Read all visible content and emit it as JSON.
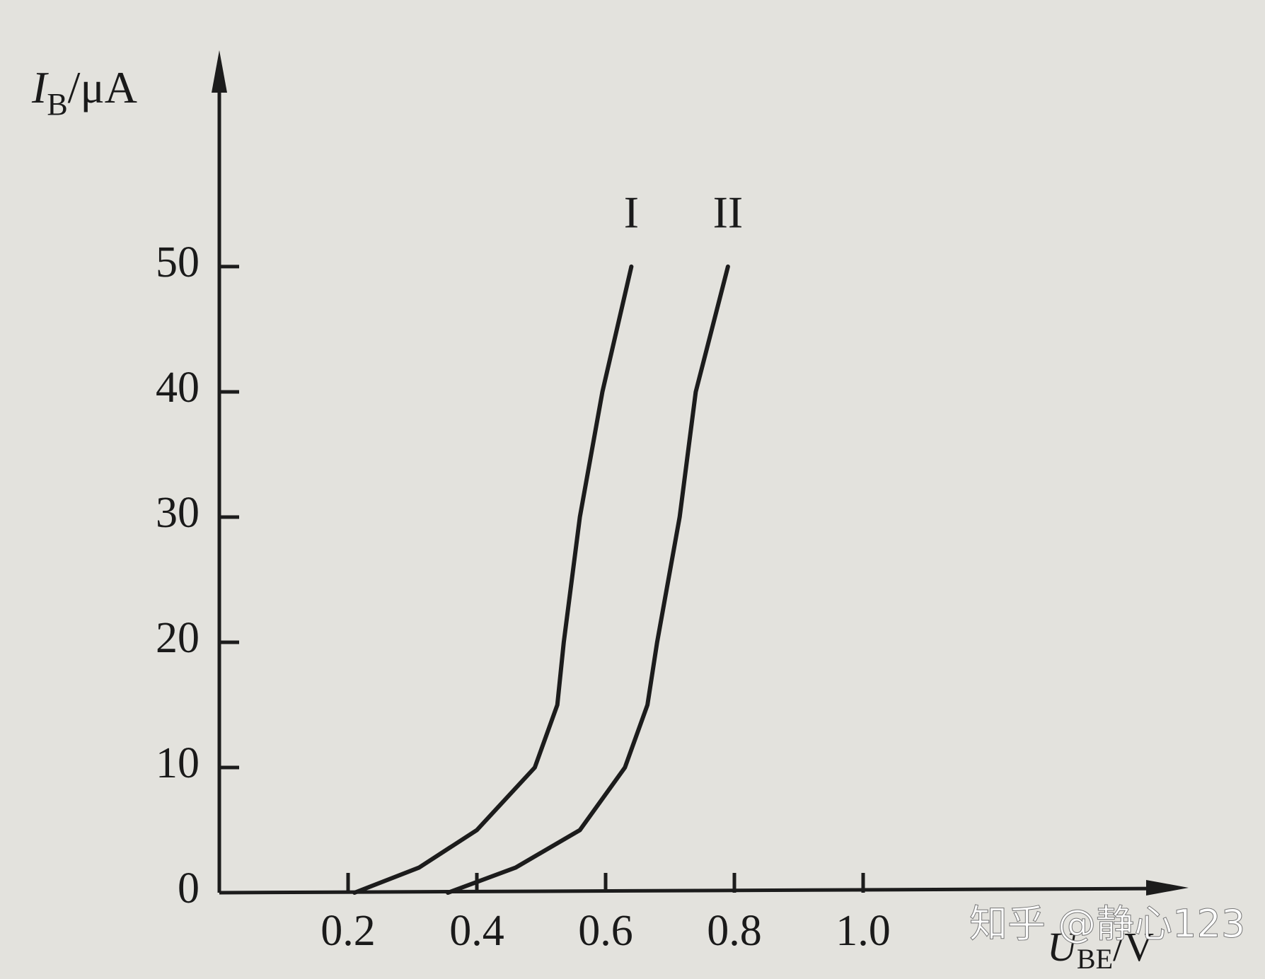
{
  "chart_data": {
    "type": "line",
    "ylabel": {
      "symbol": "I",
      "subscript": "B",
      "unit": "/μA"
    },
    "xlabel": {
      "symbol": "U",
      "subscript": "BE",
      "unit": "/V"
    },
    "series": [
      {
        "name": "I",
        "color": "#1c1c1c",
        "x": [
          0.21,
          0.31,
          0.4,
          0.49,
          0.525,
          0.535,
          0.56,
          0.595,
          0.64
        ],
        "values": [
          0,
          2,
          5,
          10,
          15,
          20,
          30,
          40,
          50
        ]
      },
      {
        "name": "II",
        "color": "#1c1c1c",
        "x": [
          0.355,
          0.46,
          0.56,
          0.63,
          0.665,
          0.68,
          0.715,
          0.74,
          0.79
        ],
        "values": [
          0,
          2,
          5,
          10,
          15,
          20,
          30,
          40,
          50
        ]
      }
    ],
    "xlim": [
      0,
      1.5
    ],
    "ylim": [
      0,
      67
    ],
    "xticks": [
      0.2,
      0.4,
      0.6,
      0.8,
      {
        "value": 1,
        "label": "1.0"
      }
    ],
    "yticks": [
      0,
      10,
      20,
      30,
      40,
      50
    ],
    "grid": false
  },
  "watermark": "知乎 @静心123"
}
